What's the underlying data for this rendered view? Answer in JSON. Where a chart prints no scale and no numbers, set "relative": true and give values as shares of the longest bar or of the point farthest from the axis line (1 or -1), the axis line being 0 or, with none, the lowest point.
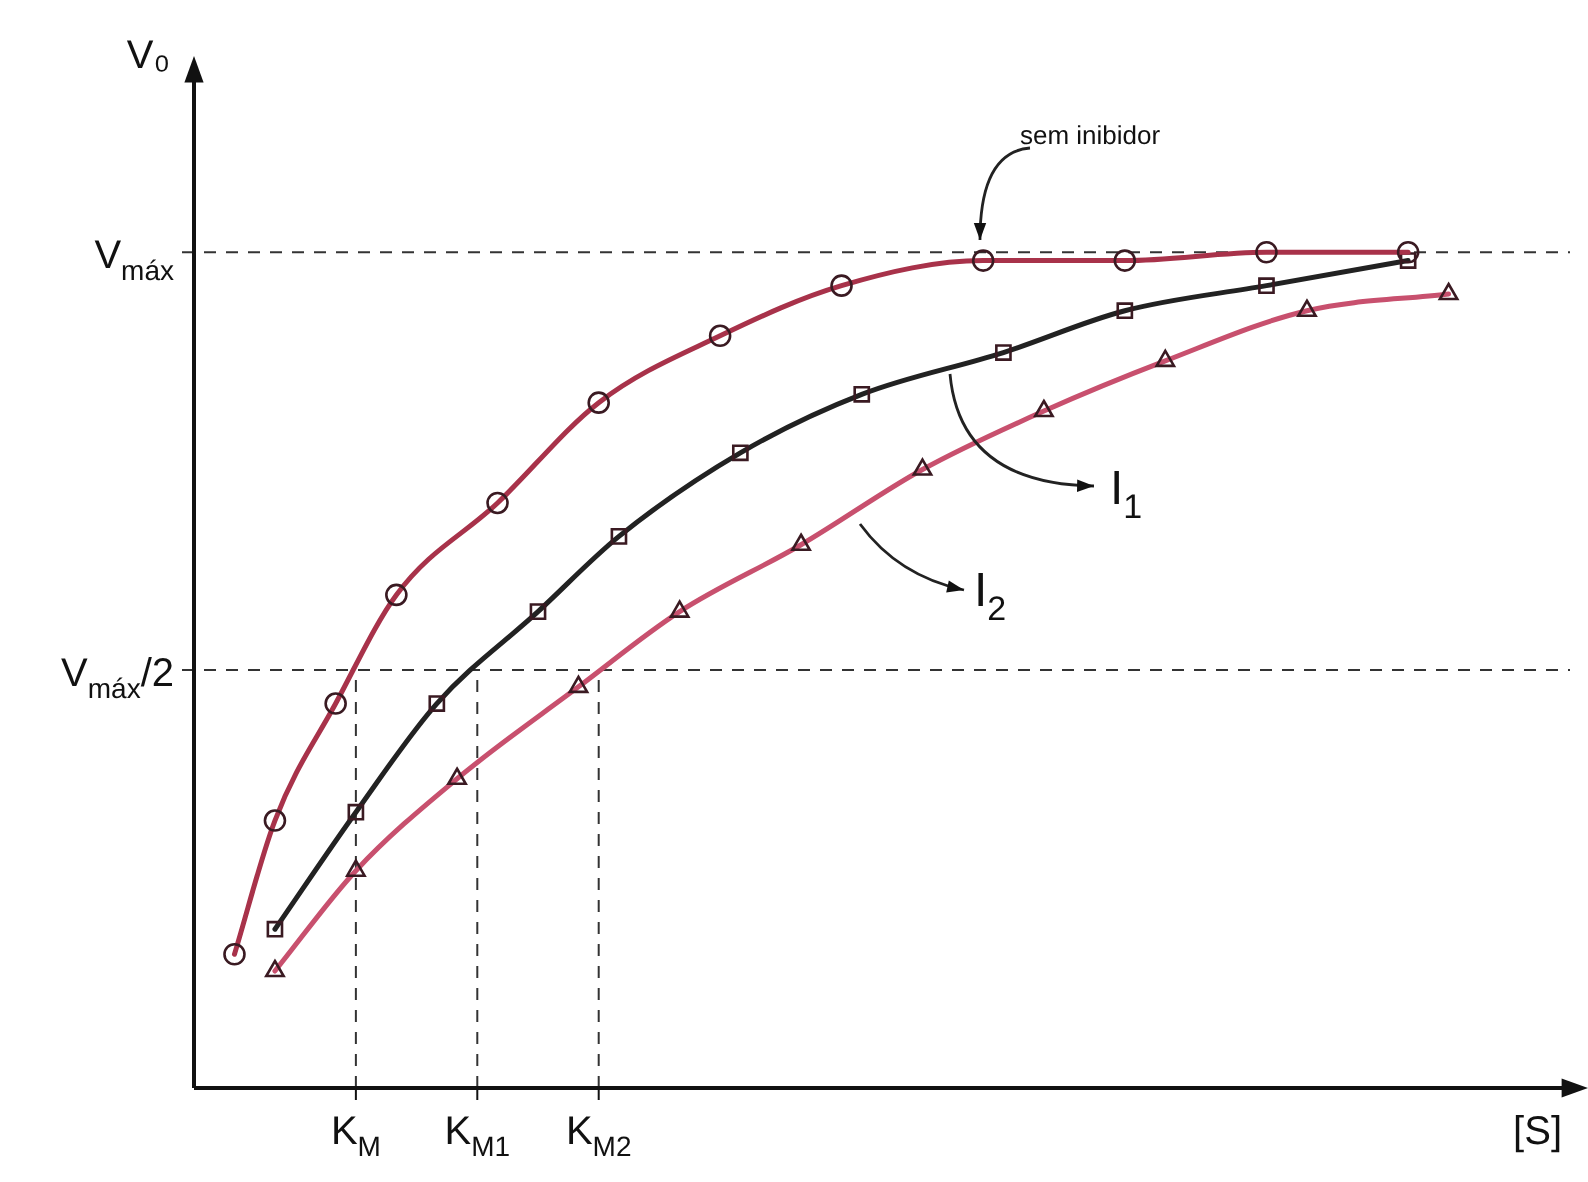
{
  "chart_data": {
    "type": "line",
    "relative": true,
    "xlabel": "[S]",
    "ylabel": "V₀",
    "line_style": "solid",
    "categories": [
      null,
      null,
      null,
      null,
      null,
      null,
      null,
      null,
      "K$_{M}$",
      null,
      null,
      null,
      null,
      null,
      "K$_{M1}$",
      null,
      null,
      null,
      null,
      null,
      "K$_{M2}$",
      null,
      null,
      null,
      null,
      null,
      null,
      null,
      null,
      null,
      null,
      null,
      null,
      null,
      null,
      null,
      null,
      null,
      null,
      null,
      null,
      null,
      null,
      null,
      null,
      null,
      null,
      null,
      null,
      null,
      null,
      null,
      null,
      null,
      null,
      null,
      null,
      null,
      null,
      null,
      null,
      null,
      null,
      null,
      null,
      null,
      null,
      null,
      null
    ],
    "series": [
      {
        "color": "#a8324a",
        "marker": "circle",
        "values": [
          null,
          null,
          0.16,
          null,
          0.32,
          null,
          null,
          0.46,
          null,
          null,
          0.59,
          null,
          null,
          null,
          null,
          0.7,
          null,
          null,
          null,
          null,
          0.82,
          null,
          null,
          null,
          null,
          null,
          0.9,
          null,
          null,
          null,
          null,
          null,
          0.96,
          null,
          null,
          null,
          null,
          null,
          null,
          0.99,
          null,
          null,
          null,
          null,
          null,
          null,
          0.99,
          null,
          null,
          null,
          null,
          null,
          null,
          1.0,
          null,
          null,
          null,
          null,
          null,
          null,
          1.0,
          null,
          null,
          null,
          null,
          null,
          null,
          null,
          null
        ]
      },
      {
        "color": "#222222",
        "marker": "square",
        "values": [
          null,
          null,
          null,
          null,
          0.19,
          null,
          null,
          null,
          0.33,
          null,
          null,
          null,
          0.46,
          null,
          null,
          null,
          null,
          0.57,
          null,
          null,
          null,
          0.66,
          null,
          null,
          null,
          null,
          null,
          0.76,
          null,
          null,
          null,
          null,
          null,
          0.83,
          null,
          null,
          null,
          null,
          null,
          null,
          0.88,
          null,
          null,
          null,
          null,
          null,
          0.93,
          null,
          null,
          null,
          null,
          null,
          null,
          0.96,
          null,
          null,
          null,
          null,
          null,
          null,
          0.99,
          null,
          null,
          null,
          null,
          null,
          null,
          null,
          null
        ]
      },
      {
        "color": "#c8506e",
        "marker": "triangle",
        "values": [
          null,
          null,
          null,
          null,
          0.14,
          null,
          null,
          null,
          0.26,
          null,
          null,
          null,
          null,
          0.37,
          null,
          null,
          null,
          null,
          null,
          0.48,
          null,
          null,
          null,
          null,
          0.57,
          null,
          null,
          null,
          null,
          null,
          0.65,
          null,
          null,
          null,
          null,
          null,
          0.74,
          null,
          null,
          null,
          null,
          null,
          0.81,
          null,
          null,
          null,
          null,
          null,
          0.87,
          null,
          null,
          null,
          null,
          null,
          null,
          0.93,
          null,
          null,
          null,
          null,
          null,
          null,
          0.95,
          null,
          null,
          null,
          null,
          null,
          null
        ]
      }
    ],
    "ref_lines": [
      {
        "axis": "y",
        "value": 1.0,
        "label": "V$_{máx}$",
        "line_style": "dashed",
        "color": "#333333"
      },
      {
        "axis": "y",
        "value": 0.5,
        "label": "V$_{máx}$/2",
        "line_style": "dashed",
        "color": "#333333"
      },
      {
        "axis": "x",
        "value": "K$_{M}$",
        "line_style": "dashed",
        "color": "#333333"
      },
      {
        "axis": "x",
        "value": "K$_{M1}$",
        "line_style": "dashed",
        "color": "#333333"
      },
      {
        "axis": "x",
        "value": "K$_{M2}$",
        "line_style": "dashed",
        "color": "#333333"
      }
    ],
    "annotations": [
      "sem inibidor",
      "I$_{1}$",
      "I$_{2}$"
    ]
  }
}
